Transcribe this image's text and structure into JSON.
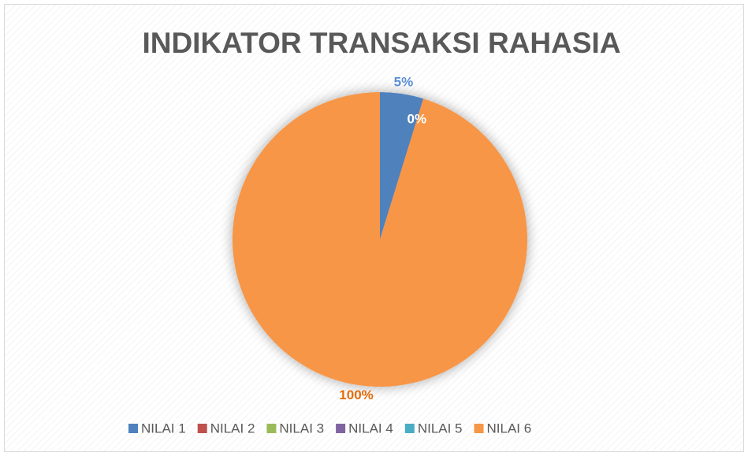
{
  "chart_data": {
    "type": "pie",
    "title": "INDIKATOR TRANSAKSI RAHASIA",
    "categories": [
      "NILAI 1",
      "NILAI 2",
      "NILAI 3",
      "NILAI 4",
      "NILAI 5",
      "NILAI 6"
    ],
    "series": [
      {
        "name": "INDIKATOR TRANSAKSI RAHASIA",
        "values": [
          5,
          0,
          0,
          0,
          0,
          100
        ],
        "value_labels": [
          "5%",
          "0%",
          null,
          null,
          null,
          "100%"
        ],
        "colors": [
          "#4f81bd",
          "#c0504d",
          "#9bbb59",
          "#8064a2",
          "#4bacc6",
          "#f79646"
        ],
        "label_colors": [
          "#5b8fd6",
          "#ffffff",
          null,
          null,
          null,
          "#e46c0a"
        ]
      }
    ],
    "legend": "bottom"
  }
}
